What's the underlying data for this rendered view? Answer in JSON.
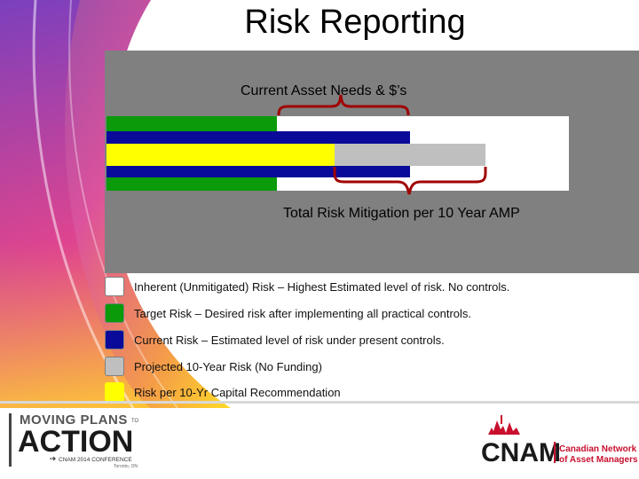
{
  "slide": {
    "title": "Risk Reporting",
    "top_label": "Current Asset Needs & $’s",
    "bottom_label": "Total Risk Mitigation per 10 Year AMP"
  },
  "legend": [
    {
      "label": "Inherent (Unmitigated) Risk – Highest Estimated level of risk. No controls.",
      "color": "#ffffff"
    },
    {
      "label": "Target Risk – Desired risk after implementing all practical controls.",
      "color": "#0a9a0a"
    },
    {
      "label": "Current Risk – Estimated level of risk under present controls.",
      "color": "#0a0a9a"
    },
    {
      "label": "Projected 10-Year Risk (No Funding)",
      "color": "#bfbfbf"
    },
    {
      "label": "Risk per 10-Yr Capital Recommendation",
      "color": "#ffff00"
    }
  ],
  "logos": {
    "left_line1": "MOVING PLANS",
    "left_to": "TO",
    "left_line2": "ACTION",
    "left_line3": "CNAM 2014 CONFERENCE",
    "left_line4": "Toronto, ON",
    "right_main": "CNAM",
    "right_sub1": "Canadian Network",
    "right_sub2": "of Asset Managers"
  },
  "colors": {
    "panel": "#808080",
    "brace": "#a00000",
    "green": "#0a9a0a",
    "blue": "#0a0a9a",
    "yellow": "#ffff00",
    "gray": "#bfbfbf",
    "logo_red": "#c8102e",
    "logo_dark": "#1a1a1a"
  }
}
